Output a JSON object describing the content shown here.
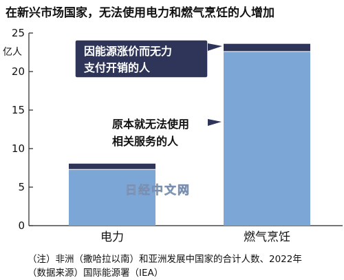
{
  "chart_data": {
    "type": "bar",
    "stacked": true,
    "title": "在新兴市场国家，无法使用电力和燃气烹饪的人增加",
    "ylabel": "亿人",
    "ylim": [
      0,
      25
    ],
    "yticks": [
      0,
      5,
      10,
      15,
      20,
      25
    ],
    "categories": [
      "电力",
      "燃气烹饪"
    ],
    "series": [
      {
        "name": "原本就无法使用相关服务的人",
        "values": [
          7.3,
          22.6
        ],
        "color": "#7ba6d6"
      },
      {
        "name": "因能源涨价而无力支付开销的人",
        "values": [
          0.75,
          1.0
        ],
        "color": "#2e3558"
      }
    ],
    "annotations": [
      {
        "text_line1": "因能源涨价而无力",
        "text_line2": "支付开销的人",
        "style": "callout-box",
        "points_to": "燃气烹饪"
      },
      {
        "text_line1": "原本就无法使用",
        "text_line2": "相关服务的人",
        "style": "arrow-label",
        "points_to": "燃气烹饪"
      }
    ],
    "grid": false
  },
  "watermark": "日经中文网",
  "notes": {
    "line1": "（注）非洲（撒哈拉以南）和亚洲发展中国家的合计人数、2022年",
    "line2": "（数据来源）国际能源署（IEA）"
  }
}
